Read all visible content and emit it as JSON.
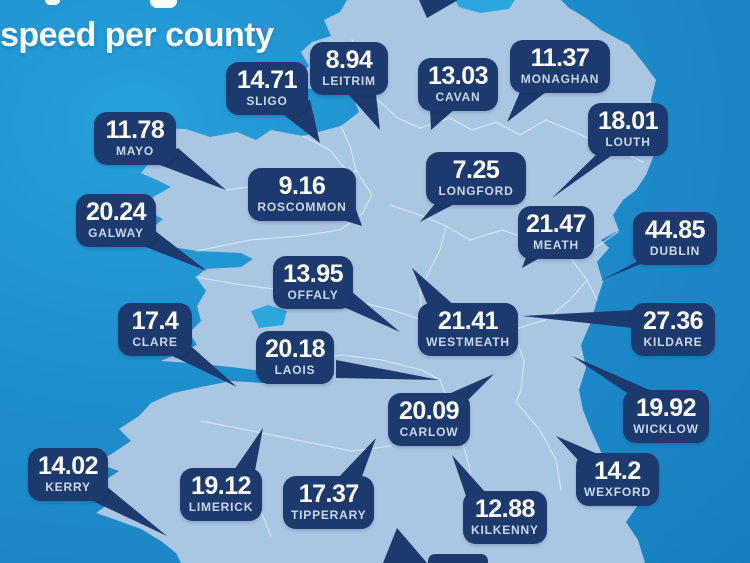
{
  "title": {
    "line2": "speed per county"
  },
  "counties": [
    {
      "name": "SLIGO",
      "value": "14.71"
    },
    {
      "name": "LEITRIM",
      "value": "8.94"
    },
    {
      "name": "CAVAN",
      "value": "13.03"
    },
    {
      "name": "MONAGHAN",
      "value": "11.37"
    },
    {
      "name": "MAYO",
      "value": "11.78"
    },
    {
      "name": "LOUTH",
      "value": "18.01"
    },
    {
      "name": "ROSCOMMON",
      "value": "9.16"
    },
    {
      "name": "LONGFORD",
      "value": "7.25"
    },
    {
      "name": "MEATH",
      "value": "21.47"
    },
    {
      "name": "GALWAY",
      "value": "20.24"
    },
    {
      "name": "DUBLIN",
      "value": "44.85"
    },
    {
      "name": "OFFALY",
      "value": "13.95"
    },
    {
      "name": "WESTMEATH",
      "value": "21.41"
    },
    {
      "name": "KILDARE",
      "value": "27.36"
    },
    {
      "name": "CLARE",
      "value": "17.4"
    },
    {
      "name": "LAOIS",
      "value": "20.18"
    },
    {
      "name": "WICKLOW",
      "value": "19.92"
    },
    {
      "name": "CARLOW",
      "value": "20.09"
    },
    {
      "name": "KERRY",
      "value": "14.02"
    },
    {
      "name": "LIMERICK",
      "value": "19.12"
    },
    {
      "name": "WEXFORD",
      "value": "14.2"
    },
    {
      "name": "TIPPERARY",
      "value": "17.37"
    },
    {
      "name": "KILKENNY",
      "value": "12.88"
    }
  ],
  "colors": {
    "background": "#1d87c7",
    "map_fill": "#a9c6e2",
    "callout": "#1c3a6d",
    "lake": "#2aa7de",
    "county_border": "#eaf3fb",
    "value_text": "#ffffff",
    "name_text": "#c9d7ea"
  }
}
